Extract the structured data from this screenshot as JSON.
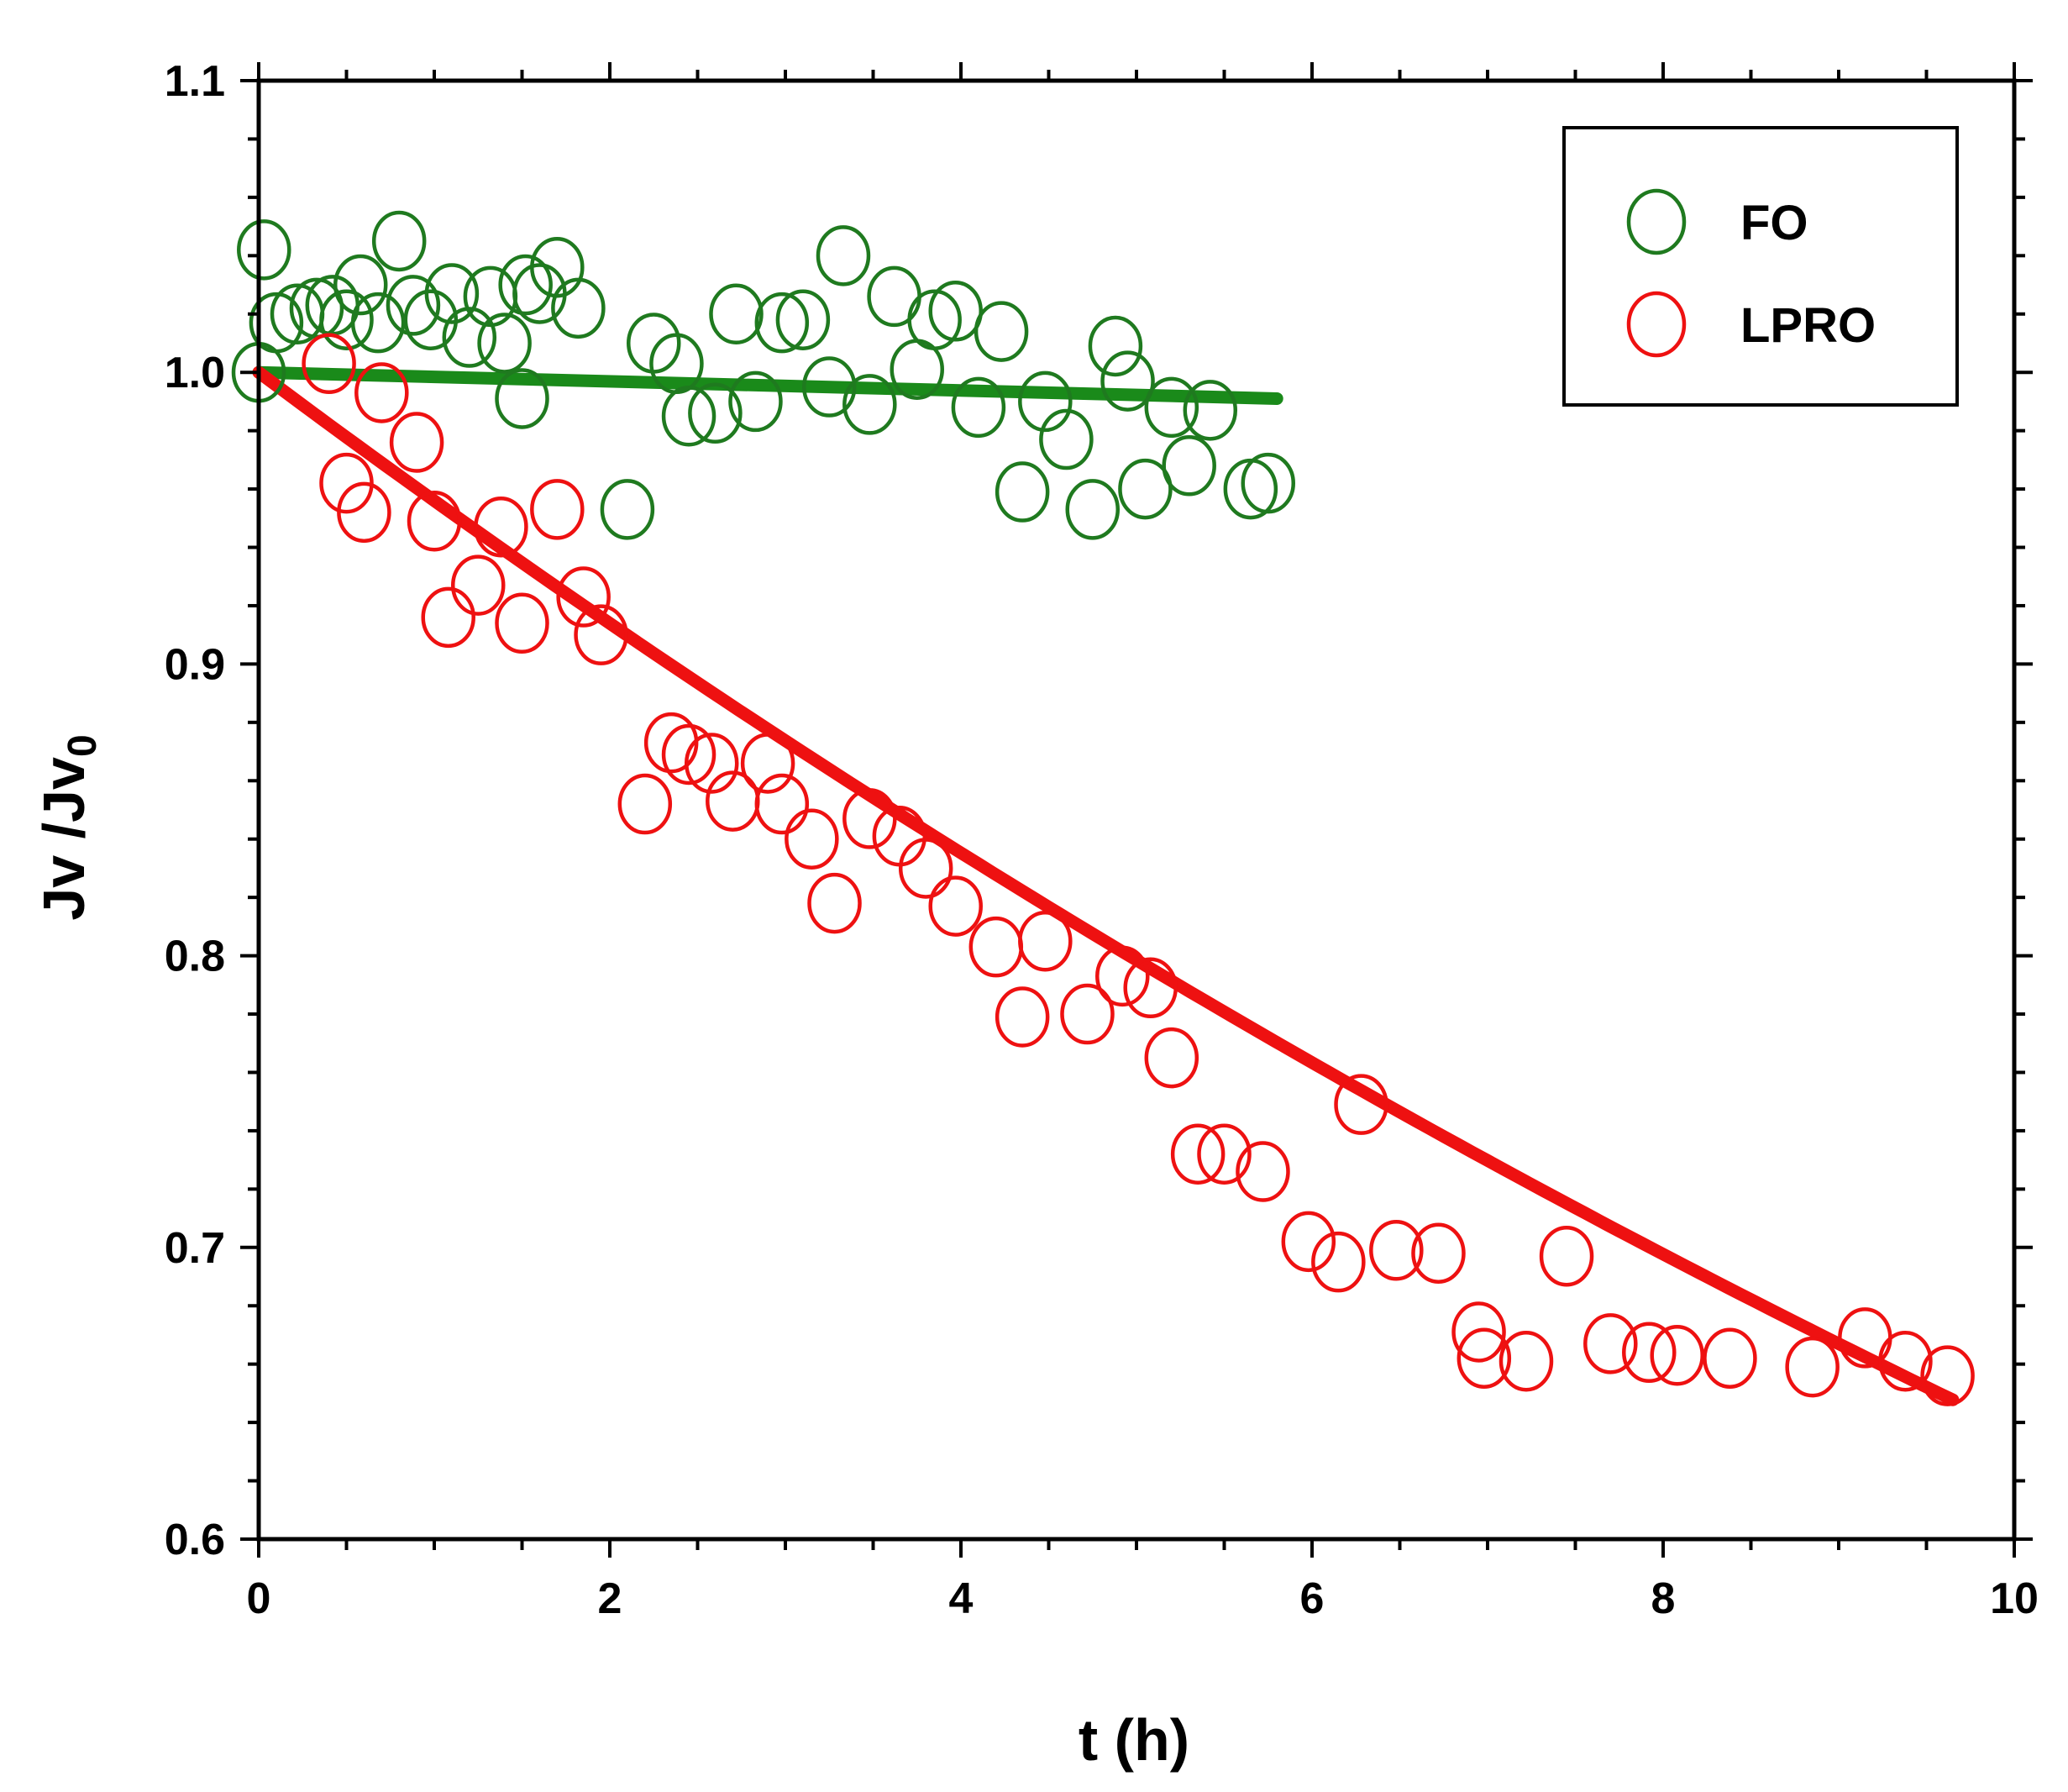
{
  "chart_data": {
    "type": "scatter",
    "title": "",
    "xlabel": "t (h)",
    "ylabel_main": "Jv /Jv",
    "ylabel_sub": "0",
    "xlim": [
      0,
      10
    ],
    "ylim": [
      0.6,
      1.1
    ],
    "x_ticks": [
      0,
      2,
      4,
      6,
      8,
      10
    ],
    "x_tick_labels": [
      "0",
      "2",
      "4",
      "6",
      "8",
      "10"
    ],
    "y_ticks": [
      0.6,
      0.7,
      0.8,
      0.9,
      1.0,
      1.1
    ],
    "y_tick_labels": [
      "0.6",
      "0.7",
      "0.8",
      "0.9",
      "1.0",
      "1.1"
    ],
    "grid": false,
    "legend_position": "top-right",
    "series": [
      {
        "name": "FO",
        "color": "#1f7a1f",
        "fit_color": "#1a8a1a",
        "points": [
          [
            0.0,
            1.0
          ],
          [
            0.03,
            1.042
          ],
          [
            0.1,
            1.017
          ],
          [
            0.22,
            1.02
          ],
          [
            0.33,
            1.022
          ],
          [
            0.42,
            1.023
          ],
          [
            0.5,
            1.018
          ],
          [
            0.58,
            1.03
          ],
          [
            0.68,
            1.017
          ],
          [
            0.8,
            1.045
          ],
          [
            0.88,
            1.023
          ],
          [
            0.98,
            1.018
          ],
          [
            1.1,
            1.027
          ],
          [
            1.2,
            1.012
          ],
          [
            1.32,
            1.026
          ],
          [
            1.4,
            1.01
          ],
          [
            1.5,
            0.991
          ],
          [
            1.52,
            1.03
          ],
          [
            1.6,
            1.027
          ],
          [
            1.7,
            1.036
          ],
          [
            1.82,
            1.022
          ],
          [
            2.1,
            0.953
          ],
          [
            2.25,
            1.01
          ],
          [
            2.38,
            1.003
          ],
          [
            2.45,
            0.985
          ],
          [
            2.6,
            0.986
          ],
          [
            2.72,
            1.02
          ],
          [
            2.83,
            0.99
          ],
          [
            2.98,
            1.017
          ],
          [
            3.1,
            1.018
          ],
          [
            3.25,
            0.995
          ],
          [
            3.33,
            1.04
          ],
          [
            3.48,
            0.989
          ],
          [
            3.62,
            1.026
          ],
          [
            3.75,
            1.001
          ],
          [
            3.85,
            1.018
          ],
          [
            3.97,
            1.021
          ],
          [
            4.1,
            0.988
          ],
          [
            4.23,
            1.014
          ],
          [
            4.35,
            0.959
          ],
          [
            4.48,
            0.99
          ],
          [
            4.6,
            0.977
          ],
          [
            4.75,
            0.953
          ],
          [
            4.88,
            1.009
          ],
          [
            4.95,
            0.997
          ],
          [
            5.05,
            0.96
          ],
          [
            5.2,
            0.988
          ],
          [
            5.3,
            0.968
          ],
          [
            5.42,
            0.987
          ],
          [
            5.65,
            0.96
          ],
          [
            5.75,
            0.962
          ]
        ],
        "fit": {
          "model": "linear",
          "x_start": 0,
          "x_end": 5.8,
          "y_start": 1.0,
          "y_end": 0.991
        }
      },
      {
        "name": "LPRO",
        "color": "#ee1111",
        "fit_color": "#ee1111",
        "points": [
          [
            0.4,
            1.003
          ],
          [
            0.7,
            0.993
          ],
          [
            0.9,
            0.976
          ],
          [
            0.5,
            0.962
          ],
          [
            0.6,
            0.952
          ],
          [
            1.0,
            0.949
          ],
          [
            1.08,
            0.916
          ],
          [
            1.25,
            0.927
          ],
          [
            1.38,
            0.947
          ],
          [
            1.5,
            0.914
          ],
          [
            1.7,
            0.953
          ],
          [
            1.85,
            0.923
          ],
          [
            1.95,
            0.91
          ],
          [
            2.2,
            0.852
          ],
          [
            2.35,
            0.873
          ],
          [
            2.45,
            0.869
          ],
          [
            2.58,
            0.866
          ],
          [
            2.7,
            0.853
          ],
          [
            2.9,
            0.866
          ],
          [
            2.98,
            0.852
          ],
          [
            3.15,
            0.84
          ],
          [
            3.28,
            0.818
          ],
          [
            3.48,
            0.847
          ],
          [
            3.65,
            0.841
          ],
          [
            3.8,
            0.83
          ],
          [
            3.97,
            0.817
          ],
          [
            4.2,
            0.803
          ],
          [
            4.35,
            0.779
          ],
          [
            4.48,
            0.805
          ],
          [
            4.72,
            0.78
          ],
          [
            4.92,
            0.793
          ],
          [
            5.08,
            0.789
          ],
          [
            5.2,
            0.765
          ],
          [
            5.35,
            0.732
          ],
          [
            5.5,
            0.732
          ],
          [
            5.72,
            0.726
          ],
          [
            5.98,
            0.702
          ],
          [
            6.15,
            0.695
          ],
          [
            6.28,
            0.749
          ],
          [
            6.48,
            0.699
          ],
          [
            6.72,
            0.698
          ],
          [
            6.95,
            0.671
          ],
          [
            6.98,
            0.662
          ],
          [
            7.22,
            0.661
          ],
          [
            7.45,
            0.697
          ],
          [
            7.7,
            0.667
          ],
          [
            7.92,
            0.664
          ],
          [
            8.08,
            0.663
          ],
          [
            8.38,
            0.662
          ],
          [
            8.85,
            0.659
          ],
          [
            9.15,
            0.669
          ],
          [
            9.38,
            0.661
          ],
          [
            9.62,
            0.656
          ]
        ],
        "fit": {
          "model": "exponential",
          "a": 1.0,
          "k": 0.045,
          "x_start": 0,
          "x_end": 9.65
        }
      }
    ]
  }
}
